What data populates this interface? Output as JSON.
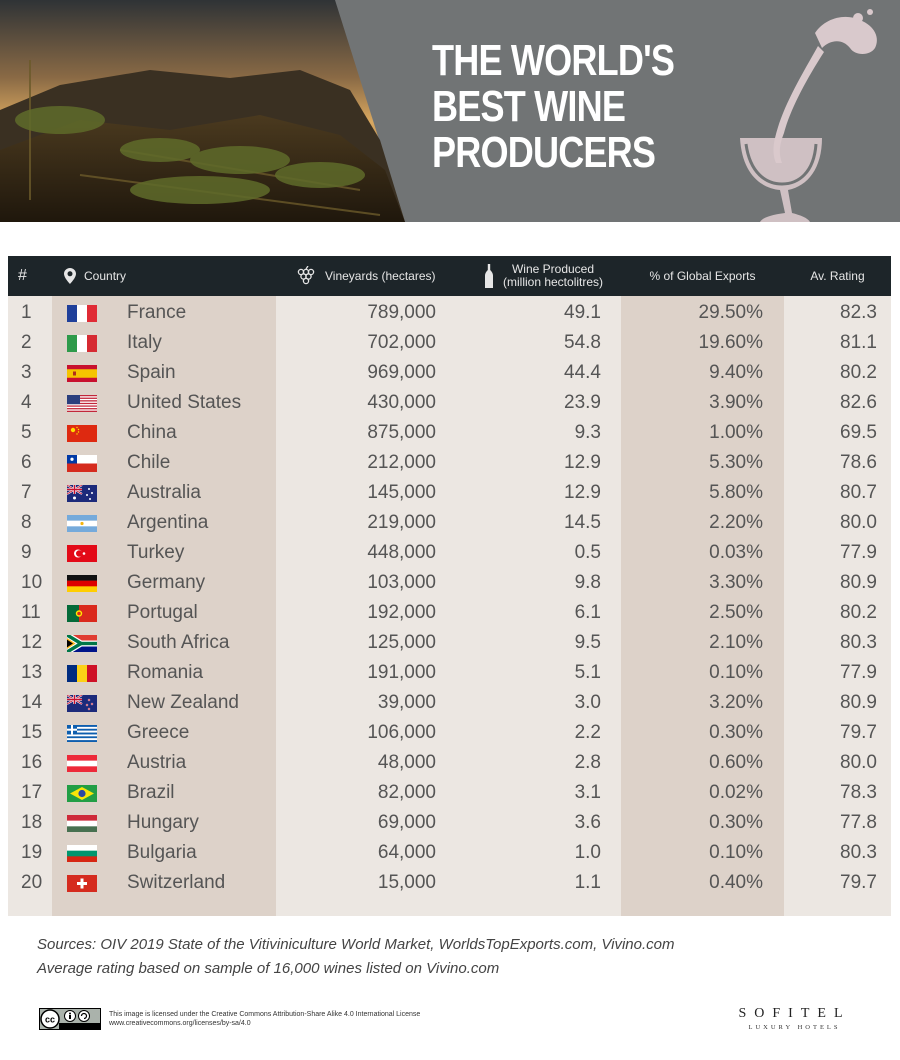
{
  "header": {
    "title_lines": [
      "THE WORLD'S",
      "BEST WINE",
      "PRODUCERS"
    ]
  },
  "colors": {
    "header_gray": "#717475",
    "table_header_bg": "#1d2529",
    "row_bg": "#ece7e2",
    "band_bg": "#ddd2c9",
    "wine_glass": "#d9c9cc"
  },
  "table": {
    "columns": {
      "rank": "#",
      "country": "Country",
      "vineyards": "Vineyards (hectares)",
      "wine_line1": "Wine Produced",
      "wine_line2": "(million hectolitres)",
      "exports": "% of Global Exports",
      "rating": "Av. Rating"
    },
    "icons": {
      "country": "map-pin-icon",
      "vineyards": "grapes-icon",
      "wine": "wine-bottle-icon"
    },
    "rows": [
      {
        "rank": "1",
        "flag": "france",
        "country": "France",
        "vineyards": "789,000",
        "wine": "49.1",
        "exports": "29.50%",
        "rating": "82.3"
      },
      {
        "rank": "2",
        "flag": "italy",
        "country": "Italy",
        "vineyards": "702,000",
        "wine": "54.8",
        "exports": "19.60%",
        "rating": "81.1"
      },
      {
        "rank": "3",
        "flag": "spain",
        "country": "Spain",
        "vineyards": "969,000",
        "wine": "44.4",
        "exports": "9.40%",
        "rating": "80.2"
      },
      {
        "rank": "4",
        "flag": "united-states",
        "country": "United States",
        "vineyards": "430,000",
        "wine": "23.9",
        "exports": "3.90%",
        "rating": "82.6"
      },
      {
        "rank": "5",
        "flag": "china",
        "country": "China",
        "vineyards": "875,000",
        "wine": "9.3",
        "exports": "1.00%",
        "rating": "69.5"
      },
      {
        "rank": "6",
        "flag": "chile",
        "country": "Chile",
        "vineyards": "212,000",
        "wine": "12.9",
        "exports": "5.30%",
        "rating": "78.6"
      },
      {
        "rank": "7",
        "flag": "australia",
        "country": "Australia",
        "vineyards": "145,000",
        "wine": "12.9",
        "exports": "5.80%",
        "rating": "80.7"
      },
      {
        "rank": "8",
        "flag": "argentina",
        "country": "Argentina",
        "vineyards": "219,000",
        "wine": "14.5",
        "exports": "2.20%",
        "rating": "80.0"
      },
      {
        "rank": "9",
        "flag": "turkey",
        "country": "Turkey",
        "vineyards": "448,000",
        "wine": "0.5",
        "exports": "0.03%",
        "rating": "77.9"
      },
      {
        "rank": "10",
        "flag": "germany",
        "country": "Germany",
        "vineyards": "103,000",
        "wine": "9.8",
        "exports": "3.30%",
        "rating": "80.9"
      },
      {
        "rank": "11",
        "flag": "portugal",
        "country": "Portugal",
        "vineyards": "192,000",
        "wine": "6.1",
        "exports": "2.50%",
        "rating": "80.2"
      },
      {
        "rank": "12",
        "flag": "south-africa",
        "country": "South Africa",
        "vineyards": "125,000",
        "wine": "9.5",
        "exports": "2.10%",
        "rating": "80.3"
      },
      {
        "rank": "13",
        "flag": "romania",
        "country": "Romania",
        "vineyards": "191,000",
        "wine": "5.1",
        "exports": "0.10%",
        "rating": "77.9"
      },
      {
        "rank": "14",
        "flag": "new-zealand",
        "country": "New Zealand",
        "vineyards": "39,000",
        "wine": "3.0",
        "exports": "3.20%",
        "rating": "80.9"
      },
      {
        "rank": "15",
        "flag": "greece",
        "country": "Greece",
        "vineyards": "106,000",
        "wine": "2.2",
        "exports": "0.30%",
        "rating": "79.7"
      },
      {
        "rank": "16",
        "flag": "austria",
        "country": "Austria",
        "vineyards": "48,000",
        "wine": "2.8",
        "exports": "0.60%",
        "rating": "80.0"
      },
      {
        "rank": "17",
        "flag": "brazil",
        "country": "Brazil",
        "vineyards": "82,000",
        "wine": "3.1",
        "exports": "0.02%",
        "rating": "78.3"
      },
      {
        "rank": "18",
        "flag": "hungary",
        "country": "Hungary",
        "vineyards": "69,000",
        "wine": "3.6",
        "exports": "0.30%",
        "rating": "77.8"
      },
      {
        "rank": "19",
        "flag": "bulgaria",
        "country": "Bulgaria",
        "vineyards": "64,000",
        "wine": "1.0",
        "exports": "0.10%",
        "rating": "80.3"
      },
      {
        "rank": "20",
        "flag": "switzerland",
        "country": "Switzerland",
        "vineyards": "15,000",
        "wine": "1.1",
        "exports": "0.40%",
        "rating": "79.7"
      }
    ]
  },
  "footer": {
    "sources_line1": "Sources: OIV 2019 State of the Vitiviniculture World Market, WorldsTopExports.com, Vivino.com",
    "sources_line2": "Average rating based on sample of 16,000 wines listed on Vivino.com",
    "license_line1": "This image is licensed under the Creative Commons Attribution-Share Alike 4.0 International License",
    "license_line2": "www.creativecommons.org/licenses/by-sa/4.0",
    "brand_name": "SOFITEL",
    "brand_sub": "LUXURY HOTELS"
  }
}
